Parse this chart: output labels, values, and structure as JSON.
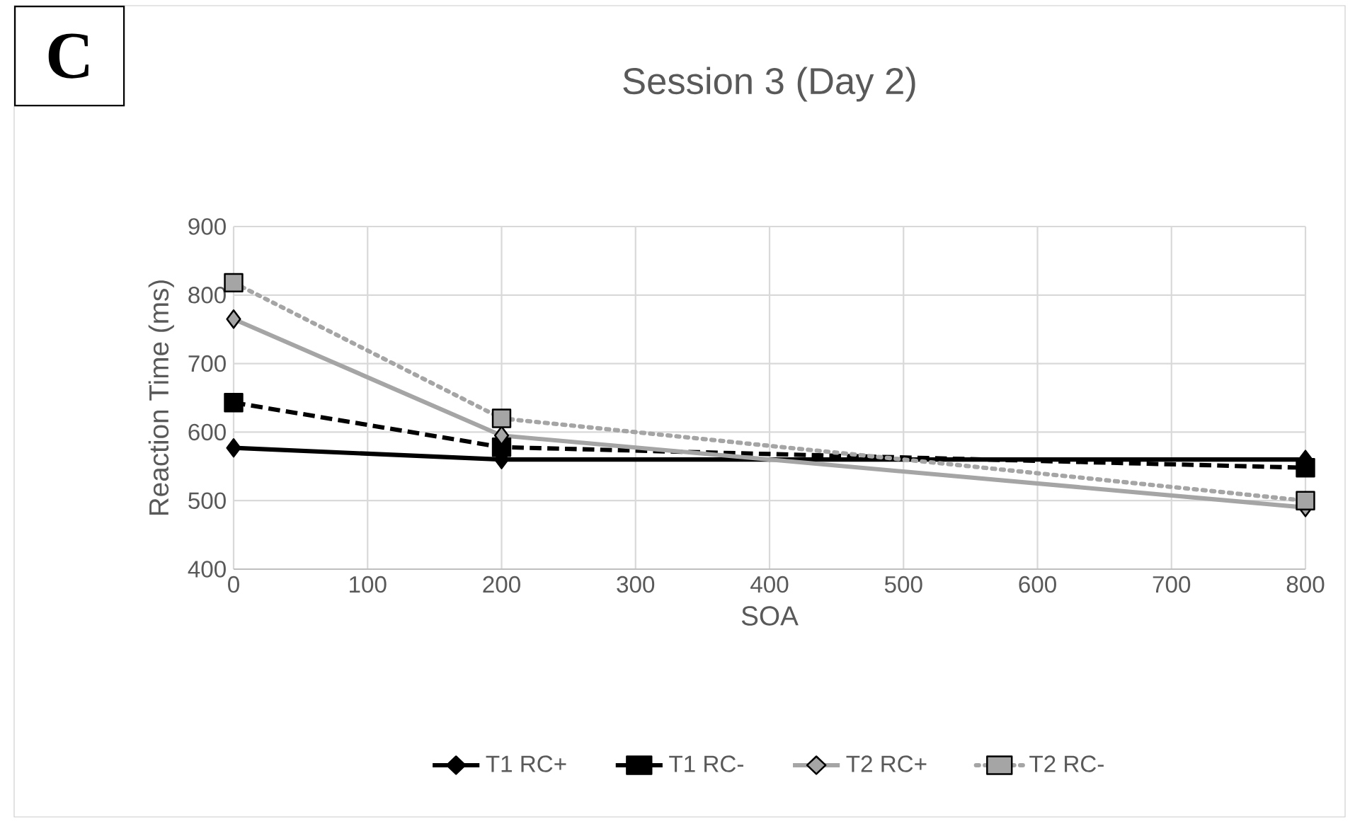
{
  "chart_data": {
    "type": "line",
    "title": "Session 3 (Day 2)",
    "xlabel": "SOA",
    "ylabel": "Reaction Time (ms)",
    "annotations": [
      "C"
    ],
    "x": [
      0,
      200,
      800
    ],
    "xlim": [
      0,
      800
    ],
    "xticks": [
      0,
      100,
      200,
      300,
      400,
      500,
      600,
      700,
      800
    ],
    "ylim": [
      400,
      900
    ],
    "yticks": [
      400,
      500,
      600,
      700,
      800,
      900
    ],
    "grid": true,
    "legend": "bottom",
    "series": [
      {
        "name": "T1 RC+",
        "color": "#000000",
        "marker": "diamond",
        "line_style": "solid",
        "values": [
          577,
          560,
          560
        ]
      },
      {
        "name": "T1 RC-",
        "color": "#000000",
        "marker": "square",
        "line_style": "dashed",
        "values": [
          643,
          578,
          548
        ]
      },
      {
        "name": "T2 RC+",
        "color": "#a5a5a5",
        "marker": "diamond",
        "line_style": "solid",
        "values": [
          765,
          595,
          490
        ]
      },
      {
        "name": "T2 RC-",
        "color": "#a5a5a5",
        "marker": "square",
        "line_style": "dotted",
        "values": [
          818,
          620,
          500
        ]
      }
    ]
  }
}
